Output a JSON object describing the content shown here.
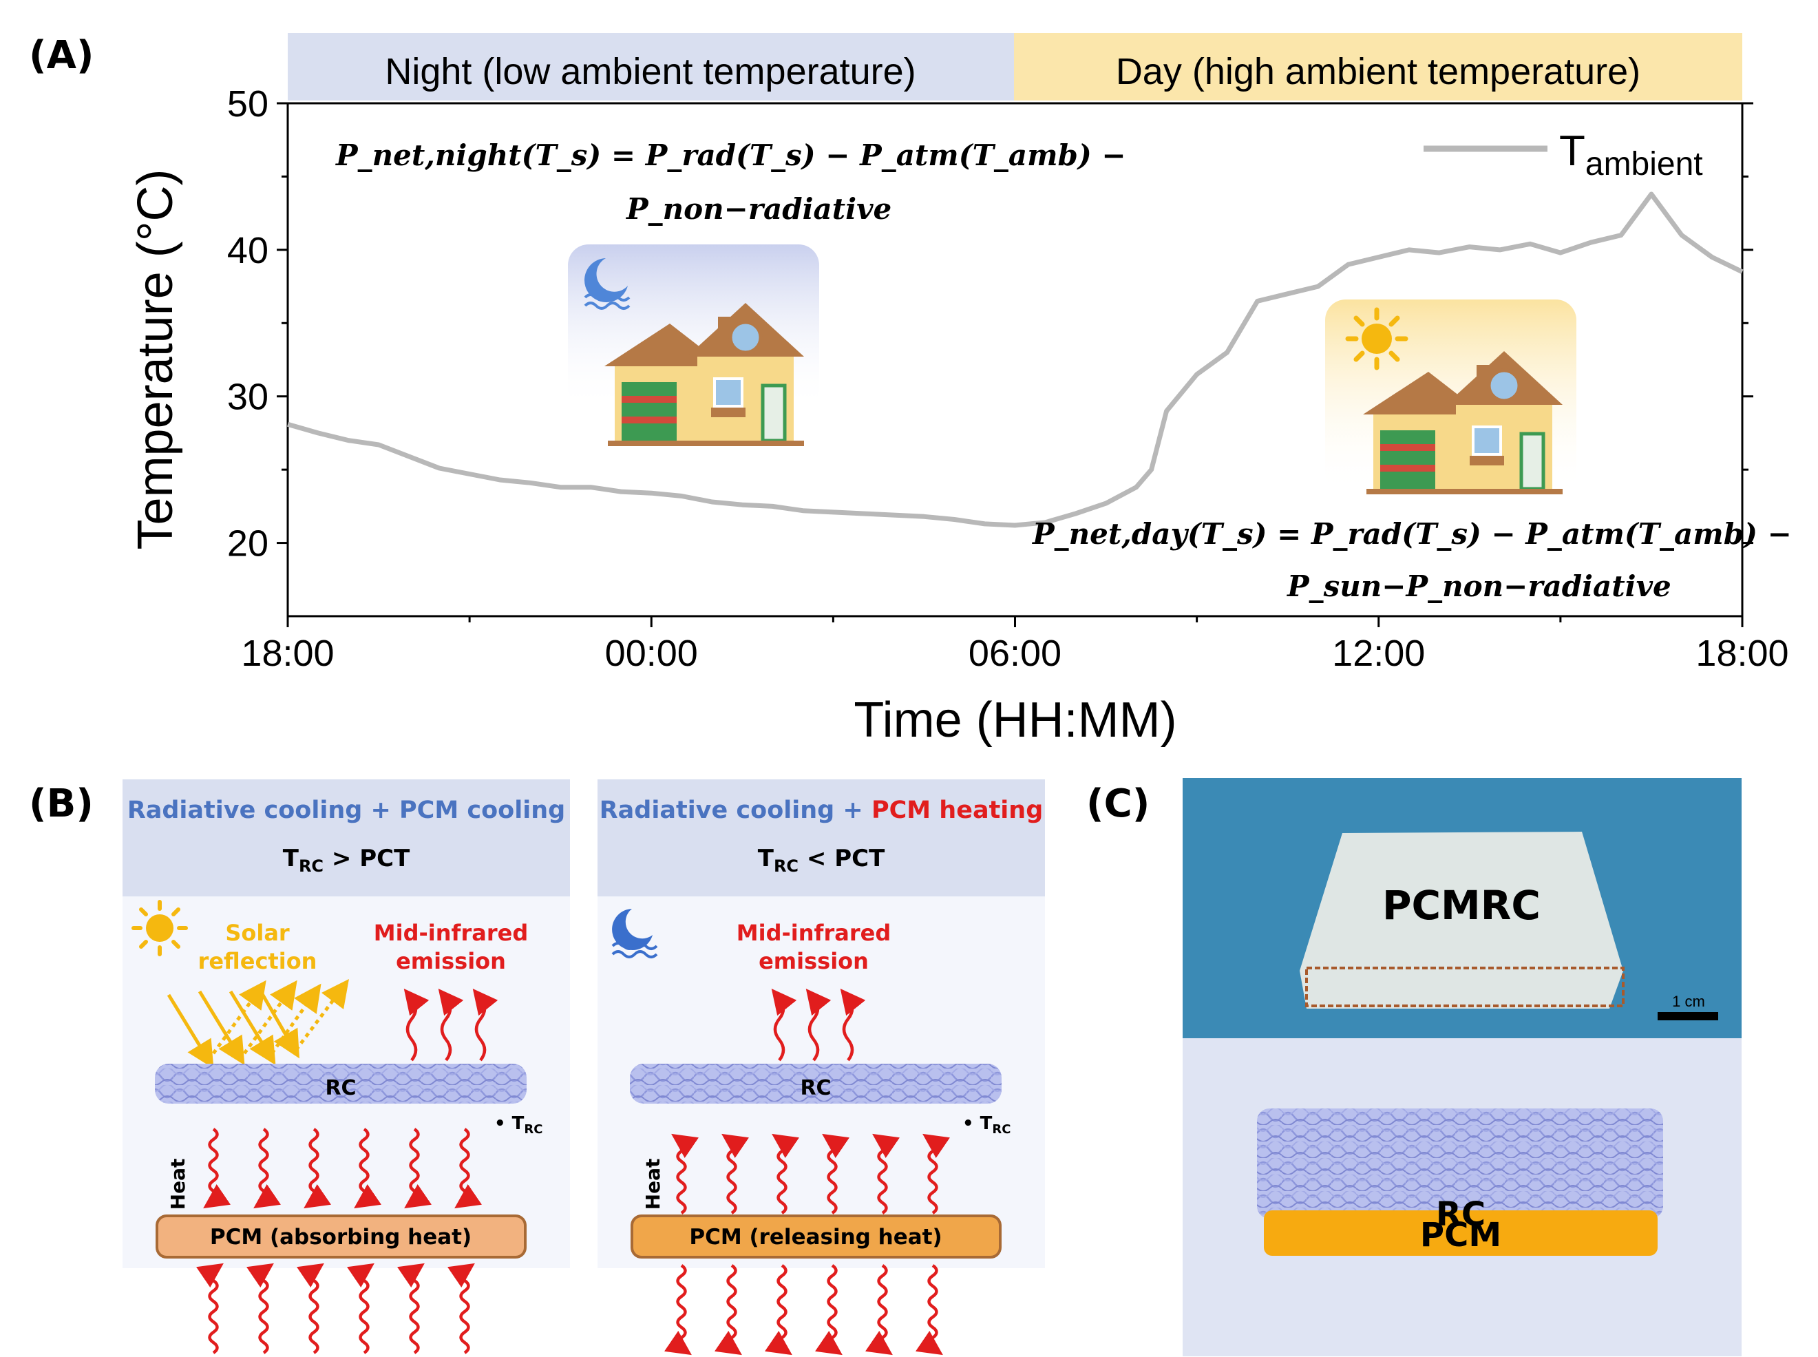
{
  "panels": {
    "a": "(A)",
    "b": "(B)",
    "c": "(C)"
  },
  "chart_data": {
    "type": "line",
    "title": "",
    "xlabel": "Time (HH:MM)",
    "ylabel": "Temperature (°C)",
    "xlim": [
      0,
      24
    ],
    "ylim": [
      15,
      50
    ],
    "x_ticks": [
      "18:00",
      "00:00",
      "06:00",
      "12:00",
      "18:00"
    ],
    "y_ticks": [
      "20",
      "30",
      "40",
      "50"
    ],
    "bands": [
      {
        "label": "Night (low ambient temperature)",
        "color": "#d9dff0"
      },
      {
        "label": "Day (high ambient temperature)",
        "color": "#fbe6ab"
      }
    ],
    "legend": {
      "main": "T",
      "sub": "ambient",
      "color": "#b8b8b8",
      "position": "top-right"
    },
    "series": [
      {
        "name": "Tambient",
        "color": "#b8b8b8",
        "x": [
          0,
          0.5,
          1,
          1.5,
          2,
          2.5,
          3,
          3.5,
          4,
          4.5,
          5,
          5.5,
          6,
          6.5,
          7,
          7.5,
          8,
          8.5,
          9,
          9.5,
          10,
          10.5,
          11,
          11.5,
          12,
          12.5,
          13,
          13.5,
          14,
          14.25,
          14.5,
          15,
          15.5,
          16,
          16.5,
          17,
          17.5,
          18,
          18.5,
          19,
          19.5,
          20,
          20.5,
          21,
          21.5,
          22,
          22.5,
          23,
          23.5,
          24
        ],
        "values": [
          28.1,
          27.5,
          27.0,
          26.7,
          25.9,
          25.1,
          24.7,
          24.3,
          24.1,
          23.8,
          23.8,
          23.5,
          23.4,
          23.2,
          22.8,
          22.6,
          22.5,
          22.2,
          22.1,
          22.0,
          21.9,
          21.8,
          21.6,
          21.3,
          21.2,
          21.4,
          22.0,
          22.7,
          23.8,
          25.0,
          29.0,
          31.5,
          33.0,
          36.5,
          37.0,
          37.5,
          39.0,
          39.5,
          40.0,
          39.8,
          40.2,
          40.0,
          40.4,
          39.8,
          40.5,
          41.0,
          43.8,
          41.0,
          39.5,
          38.5
        ]
      }
    ],
    "equations": [
      {
        "line1": "P_net,night(T_s) = P_rad(T_s) − P_atm(T_amb) −",
        "line2": "P_non−radiative"
      },
      {
        "line1": "P_net,day(T_s) = P_rad(T_s) − P_atm(T_amb) −",
        "line2": "P_sun−P_non−radiative"
      }
    ]
  },
  "panel_b": {
    "left": {
      "title_part1": "Radiative cooling +",
      "title_part2": "PCM cooling",
      "cond_main": "T",
      "cond_sub": "RC",
      "cond_rest": " > PCT",
      "solar_line1": "Solar",
      "solar_line2": "reflection",
      "mir_line1": "Mid-infrared",
      "mir_line2": "emission",
      "rc": "RC",
      "trc_main": "T",
      "trc_sub": "RC",
      "heat": "Heat",
      "pcm": "PCM (absorbing heat)"
    },
    "right": {
      "title_part1": "Radiative cooling +",
      "title_part2": "PCM heating",
      "cond_main": "T",
      "cond_sub": "RC",
      "cond_rest": " < PCT",
      "mir_line1": "Mid-infrared",
      "mir_line2": "emission",
      "rc": "RC",
      "trc_main": "T",
      "trc_sub": "RC",
      "heat": "Heat",
      "pcm": "PCM (releasing heat)"
    }
  },
  "panel_c": {
    "photo_label": "PCMRC",
    "scale": "1 cm",
    "rc": "RC",
    "pcm": "PCM"
  },
  "colors": {
    "blue_text": "#4a73c0",
    "red_text": "#e11d1d",
    "solar": "#f5b80f",
    "rc_fiber": "#9aa6e6",
    "pcm_left": "#f2b27f",
    "pcm_right": "#f0a64a",
    "photo_bg": "#3b8ab5",
    "pcm_layer": "#f7aa10"
  }
}
